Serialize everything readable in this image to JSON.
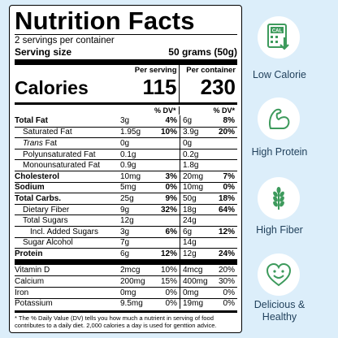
{
  "label": {
    "title": "Nutrition Facts",
    "servings": "2 servings per container",
    "serving_size_label": "Serving size",
    "serving_size_value": "50 grams (50g)",
    "calories_label": "Calories",
    "per_serving_header": "Per serving",
    "per_container_header": "Per container",
    "calories_serving": "115",
    "calories_container": "230",
    "dv_header": "% DV*",
    "rows": [
      {
        "name": "Total Fat",
        "g1": "3g",
        "p1": "4%",
        "g2": "6g",
        "p2": "8%",
        "bold": true,
        "indent": 0
      },
      {
        "name": "Saturated Fat",
        "g1": "1.95g",
        "p1": "10%",
        "g2": "3.9g",
        "p2": "20%",
        "bold": false,
        "indent": 1
      },
      {
        "name": "Trans Fat",
        "g1": "0g",
        "p1": "",
        "g2": "0g",
        "p2": "",
        "bold": false,
        "indent": 1,
        "italic_word": "Trans",
        "rest": " Fat"
      },
      {
        "name": "Polyunsaturated Fat",
        "g1": "0.1g",
        "p1": "",
        "g2": "0.2g",
        "p2": "",
        "bold": false,
        "indent": 1
      },
      {
        "name": "Monounsaturated Fat",
        "g1": "0.9g",
        "p1": "",
        "g2": "1.8g",
        "p2": "",
        "bold": false,
        "indent": 1
      },
      {
        "name": "Cholesterol",
        "g1": "10mg",
        "p1": "3%",
        "g2": "20mg",
        "p2": "7%",
        "bold": true,
        "indent": 0
      },
      {
        "name": "Sodium",
        "g1": "5mg",
        "p1": "0%",
        "g2": "10mg",
        "p2": "0%",
        "bold": true,
        "indent": 0
      },
      {
        "name": "Total Carbs.",
        "g1": "25g",
        "p1": "9%",
        "g2": "50g",
        "p2": "18%",
        "bold": true,
        "indent": 0
      },
      {
        "name": "Dietary Fiber",
        "g1": "9g",
        "p1": "32%",
        "g2": "18g",
        "p2": "64%",
        "bold": false,
        "indent": 1
      },
      {
        "name": "Total Sugars",
        "g1": "12g",
        "p1": "",
        "g2": "24g",
        "p2": "",
        "bold": false,
        "indent": 1
      },
      {
        "name": "Incl. Added Sugars",
        "g1": "3g",
        "p1": "6%",
        "g2": "6g",
        "p2": "12%",
        "bold": false,
        "indent": 2
      },
      {
        "name": "Sugar Alcohol",
        "g1": "7g",
        "p1": "",
        "g2": "14g",
        "p2": "",
        "bold": false,
        "indent": 1
      },
      {
        "name": "Protein",
        "g1": "6g",
        "p1": "12%",
        "g2": "12g",
        "p2": "24%",
        "bold": true,
        "indent": 0
      }
    ],
    "vitamins": [
      {
        "name": "Vitamin D",
        "g1": "2mcg",
        "p1": "10%",
        "g2": "4mcg",
        "p2": "20%"
      },
      {
        "name": "Calcium",
        "g1": "200mg",
        "p1": "15%",
        "g2": "400mg",
        "p2": "30%"
      },
      {
        "name": "Iron",
        "g1": "0mg",
        "p1": "0%",
        "g2": "0mg",
        "p2": "0%"
      },
      {
        "name": "Potassium",
        "g1": "9.5mg",
        "p1": "0%",
        "g2": "19mg",
        "p2": "0%"
      }
    ],
    "footnote": "* The % Daily Value (DV) tells you how much a nutrient in serving of food contributes to a daily diet. 2,000 calories a day is used for genttion advice."
  },
  "badges": [
    {
      "label": "Low Calorie",
      "icon": "calculator-icon",
      "icon_text": "CAL"
    },
    {
      "label": "High Protein",
      "icon": "flexed-arm-icon"
    },
    {
      "label": "High Fiber",
      "icon": "wheat-icon"
    },
    {
      "label": "Delicious & Healthy",
      "icon": "smiley-heart-icon"
    }
  ],
  "colors": {
    "background": "#dceefa",
    "badge_icon": "#3d9a5c",
    "badge_text": "#1f3f5a"
  }
}
